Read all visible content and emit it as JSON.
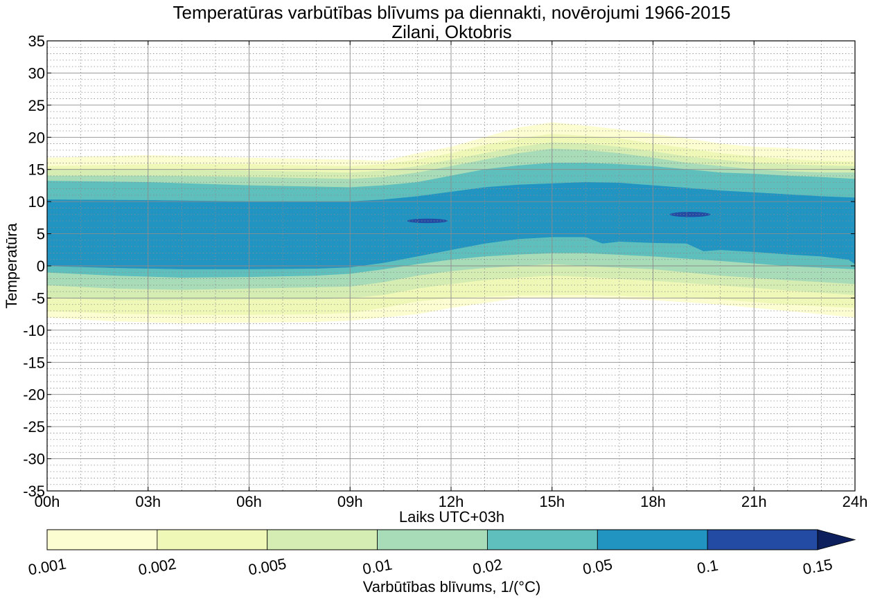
{
  "chart_data": {
    "type": "heatmap",
    "subtype": "filled-contour",
    "title": "Temperatūras varbūtības blīvums pa diennakti, novērojumi 1966-2015",
    "subtitle": "Zilani, Oktobris",
    "xlabel": "Laiks UTC+03h",
    "ylabel": "Temperatūra",
    "xlim": [
      0,
      24
    ],
    "ylim": [
      -35,
      35
    ],
    "x_ticks": [
      0,
      3,
      6,
      9,
      12,
      15,
      18,
      21,
      24
    ],
    "x_tick_labels": [
      "00h",
      "03h",
      "06h",
      "09h",
      "12h",
      "15h",
      "18h",
      "21h",
      "24h"
    ],
    "y_ticks": [
      35,
      30,
      25,
      20,
      15,
      10,
      5,
      0,
      -5,
      -10,
      -15,
      -20,
      -25,
      -30,
      -35
    ],
    "y_tick_labels": [
      "35",
      "30",
      "25",
      "20",
      "15",
      "10",
      "5",
      "0",
      "-5",
      "-10",
      "-15",
      "-20",
      "-25",
      "-30",
      "-35"
    ],
    "grid": "major solid, minor dotted",
    "colorbar": {
      "label": "Varbūtības blīvums, 1/(°C)",
      "levels": [
        0.001,
        0.002,
        0.005,
        0.01,
        0.02,
        0.05,
        0.1,
        0.15
      ],
      "level_labels": [
        "0.001",
        "0.002",
        "0.005",
        "0.01",
        "0.02",
        "0.05",
        "0.1",
        "0.15"
      ],
      "colors": [
        "#fcfdd0",
        "#f0f8b8",
        "#d5edb3",
        "#a8dbb8",
        "#5ebfbd",
        "#2294c1",
        "#234ba3",
        "#0d1f5c"
      ],
      "extend": "max",
      "placement": "bottom"
    },
    "contour_bands": [
      {
        "level": 0.001,
        "upper": [
          [
            0,
            16.8
          ],
          [
            3,
            17.2
          ],
          [
            6,
            16.8
          ],
          [
            9,
            16.5
          ],
          [
            10,
            16.3
          ],
          [
            11,
            17.5
          ],
          [
            12,
            18.5
          ],
          [
            13,
            20
          ],
          [
            14,
            21.5
          ],
          [
            15,
            22.3
          ],
          [
            16,
            21.8
          ],
          [
            17,
            21.2
          ],
          [
            18,
            20.5
          ],
          [
            19,
            19.8
          ],
          [
            20,
            19
          ],
          [
            21,
            18.5
          ],
          [
            22,
            18.3
          ],
          [
            23,
            18
          ],
          [
            24,
            18
          ]
        ],
        "lower": [
          [
            0,
            -8
          ],
          [
            2,
            -8.6
          ],
          [
            4,
            -8.9
          ],
          [
            6,
            -8.8
          ],
          [
            8,
            -8.7
          ],
          [
            9,
            -8.5
          ],
          [
            10,
            -8
          ],
          [
            11,
            -7.5
          ],
          [
            12,
            -6.5
          ],
          [
            14,
            -5
          ],
          [
            16,
            -5
          ],
          [
            18,
            -5.3
          ],
          [
            20,
            -6
          ],
          [
            22,
            -7
          ],
          [
            24,
            -8
          ]
        ]
      },
      {
        "level": 0.002,
        "upper": [
          [
            0,
            15.5
          ],
          [
            3,
            15.8
          ],
          [
            6,
            15.8
          ],
          [
            9,
            15.5
          ],
          [
            10,
            15.8
          ],
          [
            11,
            16.5
          ],
          [
            12,
            17.5
          ],
          [
            13,
            18.8
          ],
          [
            14,
            19.8
          ],
          [
            15,
            20.5
          ],
          [
            16,
            20.2
          ],
          [
            17,
            19.8
          ],
          [
            18,
            19
          ],
          [
            19,
            18.3
          ],
          [
            20,
            17.5
          ],
          [
            21,
            17
          ],
          [
            22,
            16.6
          ],
          [
            23,
            16.3
          ],
          [
            24,
            16.2
          ]
        ],
        "lower": [
          [
            0,
            -7
          ],
          [
            2,
            -7.4
          ],
          [
            4,
            -7.6
          ],
          [
            6,
            -7.6
          ],
          [
            8,
            -7.5
          ],
          [
            9,
            -7.3
          ],
          [
            10,
            -6.5
          ],
          [
            11,
            -5.5
          ],
          [
            12,
            -5
          ],
          [
            14,
            -4.6
          ],
          [
            16,
            -4.5
          ],
          [
            18,
            -4.8
          ],
          [
            20,
            -5.2
          ],
          [
            22,
            -6
          ],
          [
            24,
            -6.5
          ]
        ]
      },
      {
        "level": 0.005,
        "upper": [
          [
            0,
            15
          ],
          [
            3,
            15
          ],
          [
            6,
            14.8
          ],
          [
            9,
            14.5
          ],
          [
            10,
            14.8
          ],
          [
            11,
            15.5
          ],
          [
            12,
            16.5
          ],
          [
            13,
            17.5
          ],
          [
            14,
            18.5
          ],
          [
            15,
            19.2
          ],
          [
            16,
            19
          ],
          [
            17,
            18.5
          ],
          [
            18,
            17.8
          ],
          [
            19,
            17
          ],
          [
            20,
            16.5
          ],
          [
            21,
            16
          ],
          [
            22,
            15.8
          ],
          [
            23,
            15.6
          ],
          [
            24,
            15.5
          ]
        ],
        "lower": [
          [
            0,
            -5
          ],
          [
            2,
            -5.3
          ],
          [
            4,
            -5.3
          ],
          [
            6,
            -5.2
          ],
          [
            8,
            -5.2
          ],
          [
            9,
            -5
          ],
          [
            10,
            -4.5
          ],
          [
            11,
            -3.5
          ],
          [
            12,
            -2.8
          ],
          [
            13,
            -2.2
          ],
          [
            14,
            -1.8
          ],
          [
            15,
            -1.5
          ],
          [
            16,
            -1.7
          ],
          [
            18,
            -2.3
          ],
          [
            20,
            -3
          ],
          [
            22,
            -3.8
          ],
          [
            24,
            -4.5
          ]
        ]
      },
      {
        "level": 0.01,
        "upper": [
          [
            0,
            14
          ],
          [
            3,
            14
          ],
          [
            6,
            13.8
          ],
          [
            9,
            13.5
          ],
          [
            10,
            13.8
          ],
          [
            11,
            14.5
          ],
          [
            12,
            15.5
          ],
          [
            13,
            16.5
          ],
          [
            14,
            17.5
          ],
          [
            15,
            18.2
          ],
          [
            16,
            18
          ],
          [
            17,
            17.5
          ],
          [
            18,
            16.8
          ],
          [
            19,
            16
          ],
          [
            20,
            15.5
          ],
          [
            21,
            15
          ],
          [
            22,
            14.7
          ],
          [
            23,
            14.5
          ],
          [
            24,
            14.5
          ]
        ],
        "lower": [
          [
            0,
            -3
          ],
          [
            2,
            -3.5
          ],
          [
            4,
            -3.7
          ],
          [
            6,
            -3.5
          ],
          [
            8,
            -3.3
          ],
          [
            9,
            -3.2
          ],
          [
            10,
            -2.5
          ],
          [
            11,
            -1.5
          ],
          [
            12,
            -0.8
          ],
          [
            13,
            -0.3
          ],
          [
            14,
            0
          ],
          [
            15,
            0.3
          ],
          [
            16,
            0
          ],
          [
            18,
            -0.5
          ],
          [
            20,
            -1.5
          ],
          [
            22,
            -2.2
          ],
          [
            24,
            -2.8
          ]
        ]
      },
      {
        "level": 0.02,
        "upper": [
          [
            0,
            13.2
          ],
          [
            3,
            13
          ],
          [
            6,
            12.5
          ],
          [
            9,
            12.2
          ],
          [
            10,
            12.5
          ],
          [
            11,
            13
          ],
          [
            12,
            14
          ],
          [
            13,
            15
          ],
          [
            14,
            15.6
          ],
          [
            15,
            16
          ],
          [
            16,
            16
          ],
          [
            17,
            15.8
          ],
          [
            18,
            15.5
          ],
          [
            19,
            15
          ],
          [
            20,
            14.5
          ],
          [
            21,
            14.3
          ],
          [
            22,
            14
          ],
          [
            23,
            13.8
          ],
          [
            24,
            13.5
          ]
        ],
        "lower": [
          [
            0,
            -1
          ],
          [
            2,
            -1.5
          ],
          [
            4,
            -1.8
          ],
          [
            6,
            -1.7
          ],
          [
            8,
            -1.5
          ],
          [
            9,
            -1.2
          ],
          [
            10,
            -0.5
          ],
          [
            11,
            0.3
          ],
          [
            12,
            1
          ],
          [
            13,
            1.5
          ],
          [
            14,
            1.8
          ],
          [
            15,
            2
          ],
          [
            16,
            2
          ],
          [
            18,
            1.5
          ],
          [
            20,
            0.8
          ],
          [
            22,
            0
          ],
          [
            24,
            -0.5
          ]
        ]
      },
      {
        "level": 0.05,
        "upper": [
          [
            0,
            10.3
          ],
          [
            3,
            10.2
          ],
          [
            6,
            10
          ],
          [
            9,
            10
          ],
          [
            10,
            10.3
          ],
          [
            11,
            10.8
          ],
          [
            12,
            11.5
          ],
          [
            13,
            12.2
          ],
          [
            14,
            12.6
          ],
          [
            15,
            12.8
          ],
          [
            16,
            13
          ],
          [
            17,
            12.9
          ],
          [
            18,
            12.5
          ],
          [
            19,
            12.1
          ],
          [
            20,
            11.7
          ],
          [
            21,
            11.4
          ],
          [
            22,
            11.1
          ],
          [
            23,
            10.8
          ],
          [
            24,
            10.6
          ]
        ],
        "lower": [
          [
            0,
            0
          ],
          [
            2,
            -0.3
          ],
          [
            4,
            -0.5
          ],
          [
            6,
            -0.5
          ],
          [
            8,
            -0.4
          ],
          [
            9,
            -0.2
          ],
          [
            10,
            0.5
          ],
          [
            11,
            1.5
          ],
          [
            12,
            2.5
          ],
          [
            13,
            3.5
          ],
          [
            14,
            4.2
          ],
          [
            15,
            4.5
          ],
          [
            16,
            4.5
          ],
          [
            16.5,
            3.5
          ],
          [
            17,
            3.8
          ],
          [
            18,
            3.6
          ],
          [
            19,
            3.5
          ],
          [
            19.5,
            2.3
          ],
          [
            20,
            2.5
          ],
          [
            21,
            2.2
          ],
          [
            22,
            1.8
          ],
          [
            23,
            1.5
          ],
          [
            23.8,
            1
          ],
          [
            24,
            0.3
          ]
        ]
      }
    ],
    "high_density_spots": [
      {
        "level": 0.1,
        "x_center": 11.3,
        "y_center": 7,
        "x_halfwidth": 0.6,
        "y_halfwidth": 0.35
      },
      {
        "level": 0.1,
        "x_center": 19.1,
        "y_center": 8,
        "x_halfwidth": 0.6,
        "y_halfwidth": 0.4
      }
    ]
  }
}
